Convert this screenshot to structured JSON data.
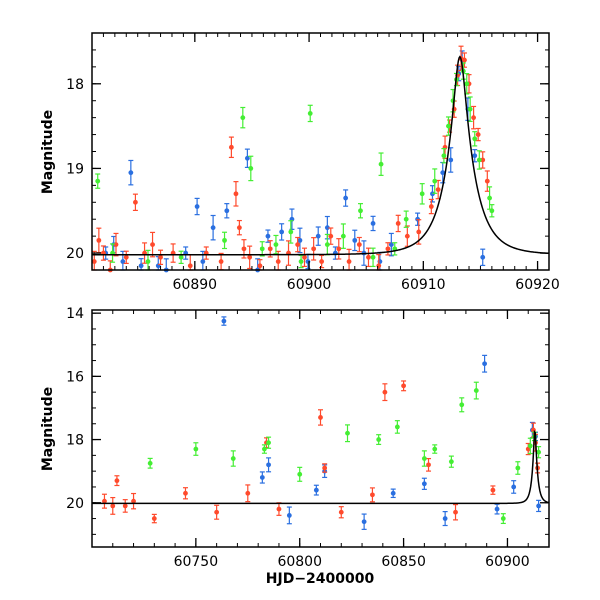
{
  "chart_data": [
    {
      "type": "scatter",
      "panel": "top",
      "title": "",
      "xlabel": "",
      "ylabel": "Magnitude",
      "xlim": [
        60881,
        60921
      ],
      "ylim": [
        20.2,
        17.4
      ],
      "y_inverted": true,
      "x_ticks": [
        60890,
        60900,
        60910,
        60920
      ],
      "y_ticks": [
        18,
        19,
        20
      ],
      "grid": false,
      "model_curve": {
        "color": "#000000",
        "t0": 60913.2,
        "peak_mag": 17.68,
        "base_mag": 20.02
      },
      "series": [
        {
          "color": "#2a6fe0",
          "points": [
            [
              60882.2,
              20.0
            ],
            [
              60882.9,
              19.9
            ],
            [
              60883.7,
              20.1
            ],
            [
              60884.4,
              19.05
            ],
            [
              60885.3,
              20.15
            ],
            [
              60886.8,
              20.15
            ],
            [
              60887.5,
              20.2
            ],
            [
              60889.2,
              20.0
            ],
            [
              60890.2,
              19.45
            ],
            [
              60890.7,
              20.1
            ],
            [
              60891.6,
              19.7
            ],
            [
              60892.8,
              19.5
            ],
            [
              60894.6,
              18.88
            ],
            [
              60895.5,
              20.2
            ],
            [
              60896.4,
              19.8
            ],
            [
              60897.6,
              19.75
            ],
            [
              60898.5,
              19.6
            ],
            [
              60899.2,
              19.85
            ],
            [
              60899.9,
              20.1
            ],
            [
              60900.8,
              19.8
            ],
            [
              60901.6,
              19.7
            ],
            [
              60902.3,
              20.0
            ],
            [
              60903.2,
              19.35
            ],
            [
              60904.0,
              19.85
            ],
            [
              60904.8,
              20.0
            ],
            [
              60905.6,
              19.65
            ],
            [
              60906.2,
              20.1
            ],
            [
              60907.2,
              19.9
            ],
            [
              60909.5,
              19.6
            ],
            [
              60910.8,
              19.3
            ],
            [
              60911.7,
              19.05
            ],
            [
              60912.4,
              18.9
            ],
            [
              60913.1,
              17.88
            ],
            [
              60913.4,
              17.72
            ],
            [
              60913.9,
              18.3
            ],
            [
              60914.5,
              18.85
            ],
            [
              60915.2,
              20.05
            ]
          ]
        },
        {
          "color": "#ff4a2c",
          "points": [
            [
              60881.2,
              20.1
            ],
            [
              60881.6,
              19.85
            ],
            [
              60882.0,
              20.0
            ],
            [
              60882.6,
              20.2
            ],
            [
              60883.1,
              19.9
            ],
            [
              60884.0,
              20.05
            ],
            [
              60884.8,
              19.4
            ],
            [
              60885.6,
              20.0
            ],
            [
              60886.3,
              19.9
            ],
            [
              60887.0,
              20.05
            ],
            [
              60888.1,
              20.0
            ],
            [
              60889.6,
              20.15
            ],
            [
              60891.0,
              20.0
            ],
            [
              60892.3,
              20.1
            ],
            [
              60893.2,
              18.75
            ],
            [
              60893.6,
              19.3
            ],
            [
              60893.9,
              19.7
            ],
            [
              60894.3,
              19.95
            ],
            [
              60894.8,
              20.05
            ],
            [
              60895.7,
              20.15
            ],
            [
              60896.6,
              19.95
            ],
            [
              60897.3,
              20.1
            ],
            [
              60898.2,
              20.0
            ],
            [
              60899.0,
              19.9
            ],
            [
              60899.6,
              20.05
            ],
            [
              60900.4,
              19.95
            ],
            [
              60901.1,
              20.1
            ],
            [
              60901.9,
              19.8
            ],
            [
              60902.6,
              19.95
            ],
            [
              60903.5,
              20.1
            ],
            [
              60904.4,
              19.9
            ],
            [
              60905.2,
              20.05
            ],
            [
              60906.1,
              20.15
            ],
            [
              60906.9,
              19.95
            ],
            [
              60907.8,
              19.65
            ],
            [
              60908.6,
              19.8
            ],
            [
              60909.6,
              19.75
            ],
            [
              60910.7,
              19.45
            ],
            [
              60911.3,
              19.25
            ],
            [
              60911.9,
              18.75
            ],
            [
              60912.3,
              18.5
            ],
            [
              60912.7,
              18.3
            ],
            [
              60913.0,
              17.9
            ],
            [
              60913.3,
              17.7
            ],
            [
              60913.6,
              17.72
            ],
            [
              60914.0,
              18.0
            ],
            [
              60914.4,
              18.4
            ],
            [
              60914.8,
              18.6
            ],
            [
              60915.2,
              18.9
            ],
            [
              60915.6,
              19.15
            ]
          ]
        },
        {
          "color": "#44ee33",
          "points": [
            [
              60881.5,
              19.15
            ],
            [
              60882.8,
              20.0
            ],
            [
              60885.9,
              20.1
            ],
            [
              60888.8,
              20.05
            ],
            [
              60892.6,
              19.85
            ],
            [
              60894.2,
              18.4
            ],
            [
              60894.9,
              19.0
            ],
            [
              60895.9,
              19.95
            ],
            [
              60897.1,
              19.9
            ],
            [
              60898.4,
              19.75
            ],
            [
              60899.3,
              20.1
            ],
            [
              60900.1,
              18.35
            ],
            [
              60901.6,
              19.9
            ],
            [
              60903.0,
              19.8
            ],
            [
              60904.5,
              19.5
            ],
            [
              60905.6,
              20.05
            ],
            [
              60906.3,
              18.95
            ],
            [
              60907.5,
              19.95
            ],
            [
              60908.5,
              19.6
            ],
            [
              60909.9,
              19.3
            ],
            [
              60911.0,
              19.15
            ],
            [
              60911.8,
              18.85
            ],
            [
              60912.2,
              18.5
            ],
            [
              60912.6,
              18.2
            ],
            [
              60912.9,
              17.95
            ],
            [
              60913.5,
              17.85
            ],
            [
              60913.8,
              18.0
            ],
            [
              60914.1,
              18.3
            ],
            [
              60914.5,
              18.65
            ],
            [
              60914.9,
              18.9
            ],
            [
              60915.8,
              19.35
            ],
            [
              60916.0,
              19.5
            ]
          ]
        }
      ]
    },
    {
      "type": "scatter",
      "panel": "bottom",
      "title": "",
      "xlabel": "HJD−2400000",
      "ylabel": "Magnitude",
      "xlim": [
        60700,
        60920
      ],
      "ylim": [
        21.4,
        13.9
      ],
      "y_inverted": true,
      "x_ticks": [
        60750,
        60800,
        60850,
        60900
      ],
      "y_ticks": [
        14,
        16,
        18,
        20
      ],
      "grid": false,
      "model_curve": {
        "color": "#000000",
        "t0": 60913.2,
        "peak_mag": 17.68,
        "base_mag": 20.02
      },
      "series": [
        {
          "color": "#2a6fe0",
          "points": [
            [
              60763.5,
              14.25
            ],
            [
              60782.0,
              19.2
            ],
            [
              60785.0,
              18.8
            ],
            [
              60795.0,
              20.4
            ],
            [
              60808.0,
              19.6
            ],
            [
              60812.0,
              19.0
            ],
            [
              60831.0,
              20.6
            ],
            [
              60845.0,
              19.7
            ],
            [
              60860.0,
              19.4
            ],
            [
              60870.0,
              20.5
            ],
            [
              60889.0,
              15.6
            ],
            [
              60895.0,
              20.2
            ],
            [
              60903.0,
              19.5
            ],
            [
              60912.0,
              17.7
            ],
            [
              60913.5,
              17.9
            ],
            [
              60915.0,
              20.1
            ]
          ]
        },
        {
          "color": "#ff4a2c",
          "points": [
            [
              60706.0,
              19.95
            ],
            [
              60710.0,
              20.1
            ],
            [
              60712.0,
              19.3
            ],
            [
              60716.0,
              20.1
            ],
            [
              60720.0,
              19.95
            ],
            [
              60730.0,
              20.5
            ],
            [
              60745.0,
              19.7
            ],
            [
              60760.0,
              20.3
            ],
            [
              60775.0,
              19.7
            ],
            [
              60784.0,
              18.1
            ],
            [
              60790.0,
              20.2
            ],
            [
              60810.0,
              17.3
            ],
            [
              60812.0,
              18.9
            ],
            [
              60820.0,
              20.3
            ],
            [
              60835.0,
              19.75
            ],
            [
              60841.0,
              16.5
            ],
            [
              60850.0,
              16.3
            ],
            [
              60862.0,
              18.8
            ],
            [
              60875.0,
              20.3
            ],
            [
              60893.0,
              19.6
            ],
            [
              60910.0,
              18.3
            ],
            [
              60912.5,
              17.7
            ],
            [
              60913.5,
              18.1
            ],
            [
              60914.5,
              18.9
            ]
          ]
        },
        {
          "color": "#44ee33",
          "points": [
            [
              60728.0,
              18.75
            ],
            [
              60750.0,
              18.3
            ],
            [
              60768.0,
              18.6
            ],
            [
              60783.0,
              18.3
            ],
            [
              60785.0,
              18.1
            ],
            [
              60800.0,
              19.1
            ],
            [
              60823.0,
              17.8
            ],
            [
              60838.0,
              18.0
            ],
            [
              60847.0,
              17.6
            ],
            [
              60860.0,
              18.6
            ],
            [
              60865.0,
              18.3
            ],
            [
              60873.0,
              18.7
            ],
            [
              60878.0,
              16.9
            ],
            [
              60885.0,
              16.45
            ],
            [
              60898.0,
              20.5
            ],
            [
              60905.0,
              18.9
            ],
            [
              60911.0,
              18.2
            ],
            [
              60913.0,
              17.9
            ],
            [
              60915.0,
              18.4
            ]
          ]
        }
      ]
    }
  ]
}
